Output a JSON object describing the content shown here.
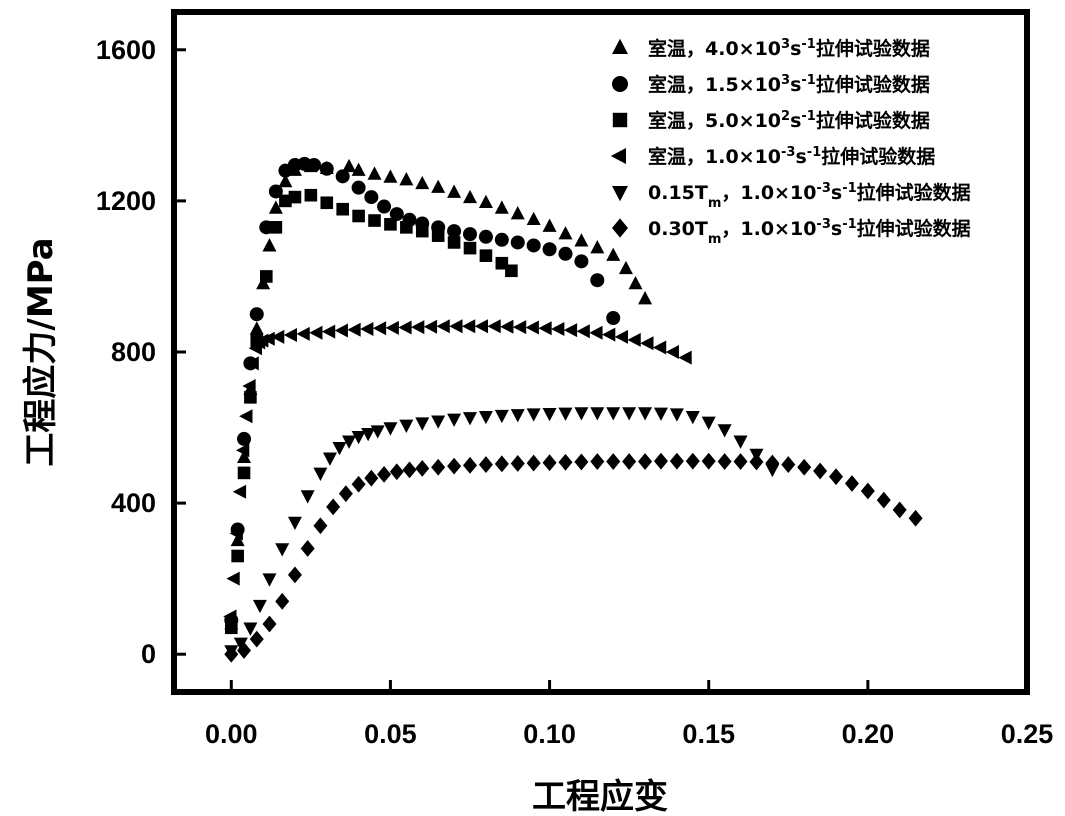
{
  "chart_data": {
    "type": "scatter",
    "xlabel": "工程应变",
    "ylabel": "工程应力/MPa",
    "xlim": [
      -0.018,
      0.25
    ],
    "ylim": [
      -100,
      1700
    ],
    "xticks": [
      "0.00",
      "0.05",
      "0.10",
      "0.15",
      "0.20",
      "0.25"
    ],
    "yticks": [
      "0",
      "400",
      "800",
      "1200",
      "1600"
    ],
    "legend_position": "top-right",
    "series": [
      {
        "name": "室温，4.0×10³s⁻¹拉伸试验数据",
        "legend_parts": [
          [
            "室温，4.0×10",
            ""
          ],
          [
            "3",
            "sup"
          ],
          [
            "s",
            ""
          ],
          [
            "-1",
            "sup"
          ],
          [
            "拉伸试验数据",
            ""
          ]
        ],
        "marker": "triangle-up",
        "x": [
          0.0,
          0.002,
          0.004,
          0.006,
          0.008,
          0.01,
          0.012,
          0.014,
          0.017,
          0.02,
          0.025,
          0.03,
          0.037,
          0.04,
          0.045,
          0.05,
          0.055,
          0.06,
          0.065,
          0.07,
          0.075,
          0.08,
          0.085,
          0.09,
          0.095,
          0.1,
          0.105,
          0.11,
          0.115,
          0.12,
          0.124,
          0.127,
          0.13
        ],
        "y": [
          80,
          300,
          520,
          700,
          860,
          980,
          1080,
          1180,
          1250,
          1280,
          1290,
          1285,
          1290,
          1280,
          1270,
          1262,
          1255,
          1245,
          1235,
          1222,
          1208,
          1195,
          1180,
          1165,
          1150,
          1132,
          1112,
          1093,
          1075,
          1055,
          1020,
          980,
          940
        ]
      },
      {
        "name": "室温，1.5×10³s⁻¹拉伸试验数据",
        "legend_parts": [
          [
            "室温，1.5×10",
            ""
          ],
          [
            "3",
            "sup"
          ],
          [
            "s",
            ""
          ],
          [
            "-1",
            "sup"
          ],
          [
            "拉伸试验数据",
            ""
          ]
        ],
        "marker": "circle",
        "x": [
          0.0,
          0.002,
          0.004,
          0.006,
          0.008,
          0.011,
          0.014,
          0.017,
          0.02,
          0.023,
          0.026,
          0.03,
          0.035,
          0.04,
          0.044,
          0.048,
          0.052,
          0.056,
          0.06,
          0.065,
          0.07,
          0.075,
          0.08,
          0.085,
          0.09,
          0.095,
          0.1,
          0.105,
          0.11,
          0.115,
          0.12
        ],
        "y": [
          90,
          330,
          570,
          770,
          900,
          1130,
          1225,
          1280,
          1295,
          1298,
          1295,
          1285,
          1265,
          1235,
          1210,
          1185,
          1165,
          1150,
          1140,
          1130,
          1120,
          1112,
          1105,
          1097,
          1090,
          1082,
          1072,
          1060,
          1040,
          990,
          890
        ]
      },
      {
        "name": "室温，5.0×10²s⁻¹拉伸试验数据",
        "legend_parts": [
          [
            "室温，5.0×10",
            ""
          ],
          [
            "2",
            "sup"
          ],
          [
            "s",
            ""
          ],
          [
            "-1",
            "sup"
          ],
          [
            "拉伸试验数据",
            ""
          ]
        ],
        "marker": "square",
        "x": [
          0.0,
          0.002,
          0.004,
          0.006,
          0.008,
          0.011,
          0.014,
          0.017,
          0.02,
          0.025,
          0.03,
          0.035,
          0.04,
          0.045,
          0.05,
          0.055,
          0.06,
          0.065,
          0.07,
          0.075,
          0.08,
          0.085,
          0.088
        ],
        "y": [
          70,
          260,
          480,
          680,
          830,
          1000,
          1130,
          1200,
          1210,
          1215,
          1195,
          1178,
          1160,
          1148,
          1138,
          1130,
          1120,
          1108,
          1090,
          1075,
          1055,
          1035,
          1015
        ]
      },
      {
        "name": "室温，1.0×10⁻³s⁻¹拉伸试验数据",
        "legend_parts": [
          [
            "室温，1.0×10",
            ""
          ],
          [
            "-3",
            "sup"
          ],
          [
            "s",
            ""
          ],
          [
            "-1",
            "sup"
          ],
          [
            "拉伸试验数据",
            ""
          ]
        ],
        "marker": "triangle-left",
        "x": [
          0.0,
          0.001,
          0.002,
          0.003,
          0.004,
          0.005,
          0.006,
          0.007,
          0.008,
          0.009,
          0.01,
          0.012,
          0.015,
          0.019,
          0.023,
          0.027,
          0.031,
          0.035,
          0.039,
          0.043,
          0.047,
          0.051,
          0.055,
          0.059,
          0.063,
          0.067,
          0.071,
          0.075,
          0.079,
          0.083,
          0.087,
          0.091,
          0.095,
          0.099,
          0.103,
          0.107,
          0.111,
          0.115,
          0.119,
          0.123,
          0.127,
          0.131,
          0.135,
          0.139,
          0.143
        ],
        "y": [
          100,
          200,
          320,
          430,
          540,
          630,
          710,
          770,
          810,
          825,
          830,
          835,
          840,
          845,
          848,
          851,
          854,
          857,
          859,
          861,
          863,
          864,
          865,
          866,
          867,
          868,
          868,
          868,
          868,
          868,
          867,
          866,
          865,
          863,
          861,
          858,
          855,
          851,
          846,
          840,
          832,
          823,
          812,
          800,
          785
        ]
      },
      {
        "name": "0.15Tₘ，1.0×10⁻³s⁻¹拉伸试验数据",
        "legend_parts": [
          [
            "0.15T",
            ""
          ],
          [
            "m",
            "sub"
          ],
          [
            "，1.0×10",
            ""
          ],
          [
            "-3",
            "sup"
          ],
          [
            "s",
            ""
          ],
          [
            "-1",
            "sup"
          ],
          [
            "拉伸试验数据",
            ""
          ]
        ],
        "marker": "triangle-down",
        "x": [
          0.0,
          0.003,
          0.006,
          0.009,
          0.012,
          0.016,
          0.02,
          0.024,
          0.028,
          0.031,
          0.034,
          0.037,
          0.04,
          0.043,
          0.046,
          0.05,
          0.055,
          0.06,
          0.065,
          0.07,
          0.075,
          0.08,
          0.085,
          0.09,
          0.095,
          0.1,
          0.105,
          0.11,
          0.115,
          0.12,
          0.125,
          0.13,
          0.135,
          0.14,
          0.145,
          0.15,
          0.155,
          0.16,
          0.165,
          0.17
        ],
        "y": [
          10,
          30,
          70,
          130,
          200,
          280,
          350,
          420,
          480,
          520,
          548,
          565,
          577,
          585,
          592,
          600,
          607,
          613,
          618,
          623,
          627,
          630,
          633,
          635,
          637,
          638,
          639,
          640,
          640,
          640,
          640,
          640,
          639,
          637,
          630,
          615,
          595,
          565,
          530,
          490
        ]
      },
      {
        "name": "0.30Tₘ，1.0×10⁻³s⁻¹拉伸试验数据",
        "legend_parts": [
          [
            "0.30T",
            ""
          ],
          [
            "m",
            "sub"
          ],
          [
            "，1.0×10",
            ""
          ],
          [
            "-3",
            "sup"
          ],
          [
            "s",
            ""
          ],
          [
            "-1",
            "sup"
          ],
          [
            "拉伸试验数据",
            ""
          ]
        ],
        "marker": "diamond",
        "x": [
          0.0,
          0.004,
          0.008,
          0.012,
          0.016,
          0.02,
          0.024,
          0.028,
          0.032,
          0.036,
          0.04,
          0.044,
          0.048,
          0.052,
          0.056,
          0.06,
          0.065,
          0.07,
          0.075,
          0.08,
          0.085,
          0.09,
          0.095,
          0.1,
          0.105,
          0.11,
          0.115,
          0.12,
          0.125,
          0.13,
          0.135,
          0.14,
          0.145,
          0.15,
          0.155,
          0.16,
          0.165,
          0.17,
          0.175,
          0.18,
          0.185,
          0.19,
          0.195,
          0.2,
          0.205,
          0.21,
          0.215
        ],
        "y": [
          0,
          10,
          40,
          80,
          140,
          210,
          280,
          340,
          390,
          425,
          450,
          466,
          476,
          483,
          488,
          492,
          495,
          498,
          500,
          502,
          504,
          505,
          506,
          507,
          508,
          509,
          510,
          510,
          510,
          510,
          511,
          511,
          511,
          511,
          510,
          510,
          509,
          506,
          502,
          495,
          485,
          470,
          452,
          432,
          408,
          382,
          360
        ]
      }
    ]
  }
}
